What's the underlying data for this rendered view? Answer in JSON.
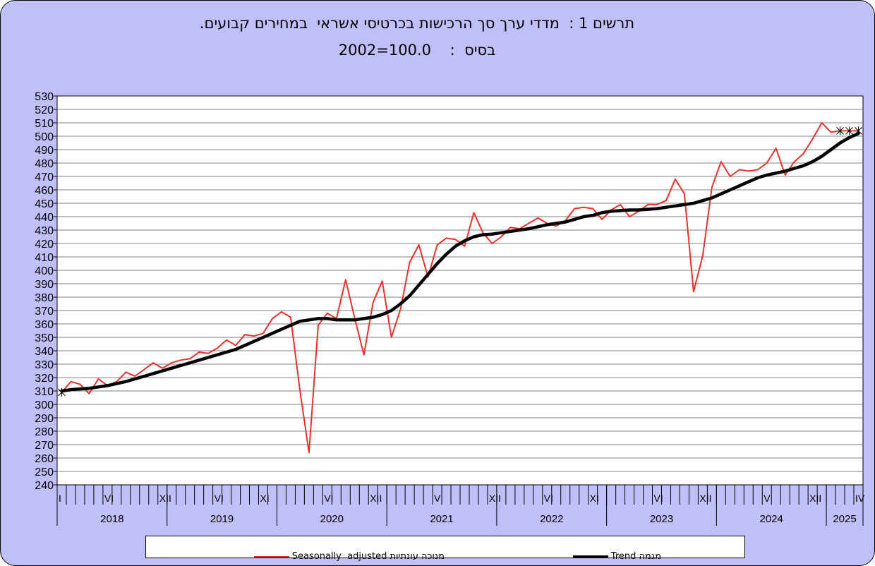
{
  "chart_data": {
    "type": "line",
    "title": "תרשים 1 :  מדדי ערך סך הרכישות בכרטיסי אשראי  במחירים קבועים.",
    "subtitle": "בסיס  :    100.0=2002",
    "ylim": [
      240,
      530
    ],
    "yticks": [
      240,
      250,
      260,
      270,
      280,
      290,
      300,
      310,
      320,
      330,
      340,
      350,
      360,
      370,
      380,
      390,
      400,
      410,
      420,
      430,
      440,
      450,
      460,
      470,
      480,
      490,
      500,
      510,
      520,
      530
    ],
    "x_start": "2018-01",
    "month_tick_labels": {
      "0": "I",
      "5": "VI",
      "11": "XII",
      "17": "VI",
      "22": "XI",
      "29": "VI",
      "34": "XII",
      "41": "V",
      "47": "XII",
      "53": "VI",
      "58": "XI",
      "65": "VI",
      "70": "XII",
      "77": "V",
      "82": "XII",
      "87": "IV"
    },
    "year_labels": [
      "2018",
      "2019",
      "2020",
      "2021",
      "2022",
      "2023",
      "2024",
      "2025"
    ],
    "grid": true,
    "legend_position": "bottom",
    "series": [
      {
        "name": "Seasonally  adjusted מנוכה עונתיות",
        "color": "#e8312d",
        "values": [
          309,
          317,
          315,
          308,
          319,
          314,
          317,
          324,
          321,
          326,
          331,
          327,
          331,
          333,
          334,
          339,
          338,
          342,
          348,
          344,
          352,
          351,
          353,
          364,
          369,
          365,
          311,
          264,
          359,
          368,
          364,
          393,
          364,
          337,
          376,
          392,
          350,
          371,
          406,
          419,
          395,
          419,
          424,
          423,
          418,
          443,
          428,
          420,
          425,
          432,
          431,
          435,
          439,
          435,
          433,
          437,
          446,
          447,
          446,
          438,
          445,
          449,
          440,
          444,
          449,
          449,
          452,
          468,
          457,
          384,
          411,
          462,
          481,
          470,
          475,
          474,
          475,
          480,
          491,
          471,
          481,
          487,
          498,
          510,
          503,
          504,
          504,
          504
        ]
      },
      {
        "name": "Trend מגמה",
        "color": "#000000",
        "values": [
          310,
          311,
          311.5,
          312,
          313,
          314,
          315.5,
          317,
          319,
          321,
          323,
          325,
          327,
          329,
          331,
          333,
          335,
          337,
          339,
          341,
          344,
          347,
          350,
          353,
          356,
          359,
          362,
          363,
          364,
          364,
          363,
          363,
          363,
          364,
          365,
          367,
          370,
          375,
          381,
          389,
          397,
          405,
          412,
          418,
          422,
          425,
          426.5,
          427,
          428,
          429,
          430,
          431,
          432.5,
          434,
          435,
          436,
          438,
          440,
          441,
          443,
          444,
          444.5,
          445,
          445,
          445.5,
          446,
          447,
          448,
          449,
          450,
          452,
          454,
          457,
          460,
          463,
          466,
          469,
          471,
          472.5,
          474,
          476,
          478,
          481,
          485,
          490,
          495,
          499,
          502
        ]
      }
    ]
  },
  "colors": {
    "background": "#c0c0f8",
    "plot_area": "#ffffff",
    "gridline": "#808080",
    "series_adjusted": "#e8312d",
    "series_trend": "#000000"
  },
  "legend": {
    "adjusted_label": "Seasonally  adjusted מנוכה עונתיות",
    "trend_label": "Trend מגמה"
  }
}
